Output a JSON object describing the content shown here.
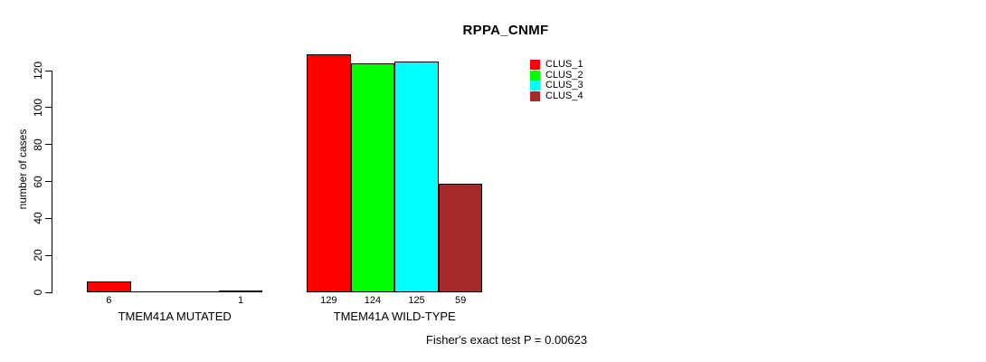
{
  "chart_data": {
    "type": "bar",
    "title": "RPPA_CNMF",
    "ylabel": "number of cases",
    "xlabel": "",
    "categories": [
      "TMEM41A MUTATED",
      "TMEM41A WILD-TYPE"
    ],
    "series": [
      {
        "name": "CLUS_1",
        "color": "#FF0000",
        "values": [
          6,
          129
        ]
      },
      {
        "name": "CLUS_2",
        "color": "#00FF00",
        "values": [
          0,
          124
        ]
      },
      {
        "name": "CLUS_3",
        "color": "#00FFFF",
        "values": [
          0,
          125
        ]
      },
      {
        "name": "CLUS_4",
        "color": "#A52A2A",
        "values": [
          1,
          59
        ]
      }
    ],
    "bar_value_labels_visible": [
      "6",
      "1",
      "129",
      "124",
      "125",
      "59"
    ],
    "ylim": [
      0,
      120
    ],
    "yticks": [
      0,
      20,
      40,
      60,
      80,
      100,
      120
    ],
    "grid": false,
    "legend_position": "top-right",
    "legend_entries": [
      "CLUS_1",
      "CLUS_2",
      "CLUS_3",
      "CLUS_4"
    ],
    "annotation": "Fisher's exact test P = 0.00623"
  },
  "colors": {
    "axis": "#000000",
    "text": "#000000",
    "background": "#FFFFFF"
  }
}
